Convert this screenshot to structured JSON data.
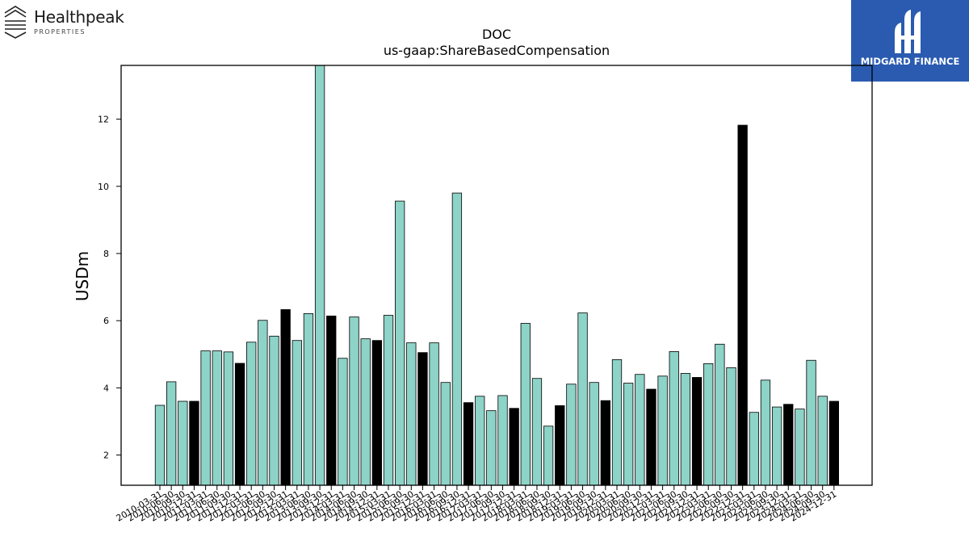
{
  "brand": {
    "left_logo_name": "Healthpeak",
    "left_logo_sub": "PROPERTIES",
    "right_logo_name": "MIDGARD FINANCE"
  },
  "colors": {
    "bar_default": "#8dd3c7",
    "bar_highlight": "#000000",
    "right_logo_bg": "#2a5bb0"
  },
  "chart_data": {
    "type": "bar",
    "title": "DOC",
    "subtitle": "us-gaap:ShareBasedCompensation",
    "ylabel": "USDm",
    "xlabel": "",
    "ylim": [
      1.1,
      13.6
    ],
    "yticks": [
      2,
      4,
      6,
      8,
      10,
      12
    ],
    "grid": false,
    "highlight_rule": "year-end (-12-31) bars drawn in black",
    "categories": [
      "2010-03-31",
      "2010-06-30",
      "2010-09-30",
      "2010-12-31",
      "2011-03-31",
      "2011-06-30",
      "2011-09-30",
      "2011-12-31",
      "2012-03-31",
      "2012-06-30",
      "2012-09-30",
      "2012-12-31",
      "2013-03-31",
      "2013-06-30",
      "2013-09-30",
      "2013-12-31",
      "2014-03-31",
      "2014-06-30",
      "2014-09-30",
      "2014-12-31",
      "2015-03-31",
      "2015-06-30",
      "2015-09-30",
      "2015-12-31",
      "2016-03-31",
      "2016-06-30",
      "2016-09-30",
      "2016-12-31",
      "2017-03-31",
      "2017-06-30",
      "2017-09-30",
      "2017-12-31",
      "2018-03-31",
      "2018-06-30",
      "2018-09-30",
      "2018-12-31",
      "2019-03-31",
      "2019-06-30",
      "2019-09-30",
      "2019-12-31",
      "2020-03-31",
      "2020-06-30",
      "2020-09-30",
      "2020-12-31",
      "2021-03-31",
      "2021-06-30",
      "2021-09-30",
      "2021-12-31",
      "2022-03-31",
      "2022-06-30",
      "2022-09-30",
      "2022-12-31",
      "2023-03-31",
      "2023-06-30",
      "2023-09-30",
      "2023-12-31",
      "2024-03-31",
      "2024-06-30",
      "2024-09-30",
      "2024-12-31"
    ],
    "values": [
      3.48,
      4.18,
      3.6,
      3.6,
      5.1,
      5.1,
      5.07,
      4.73,
      5.36,
      6.01,
      5.54,
      6.33,
      5.41,
      6.21,
      13.62,
      6.14,
      4.88,
      6.11,
      5.46,
      5.41,
      6.16,
      9.56,
      5.34,
      5.05,
      5.34,
      4.16,
      9.8,
      3.56,
      3.75,
      3.32,
      3.77,
      3.39,
      5.92,
      4.28,
      2.86,
      3.47,
      4.11,
      6.23,
      4.16,
      3.62,
      4.84,
      4.14,
      4.4,
      3.96,
      4.35,
      5.08,
      4.43,
      4.31,
      4.72,
      5.3,
      4.6,
      11.82,
      3.27,
      4.23,
      3.43,
      3.51,
      3.37,
      4.82,
      3.75,
      3.6
    ]
  }
}
